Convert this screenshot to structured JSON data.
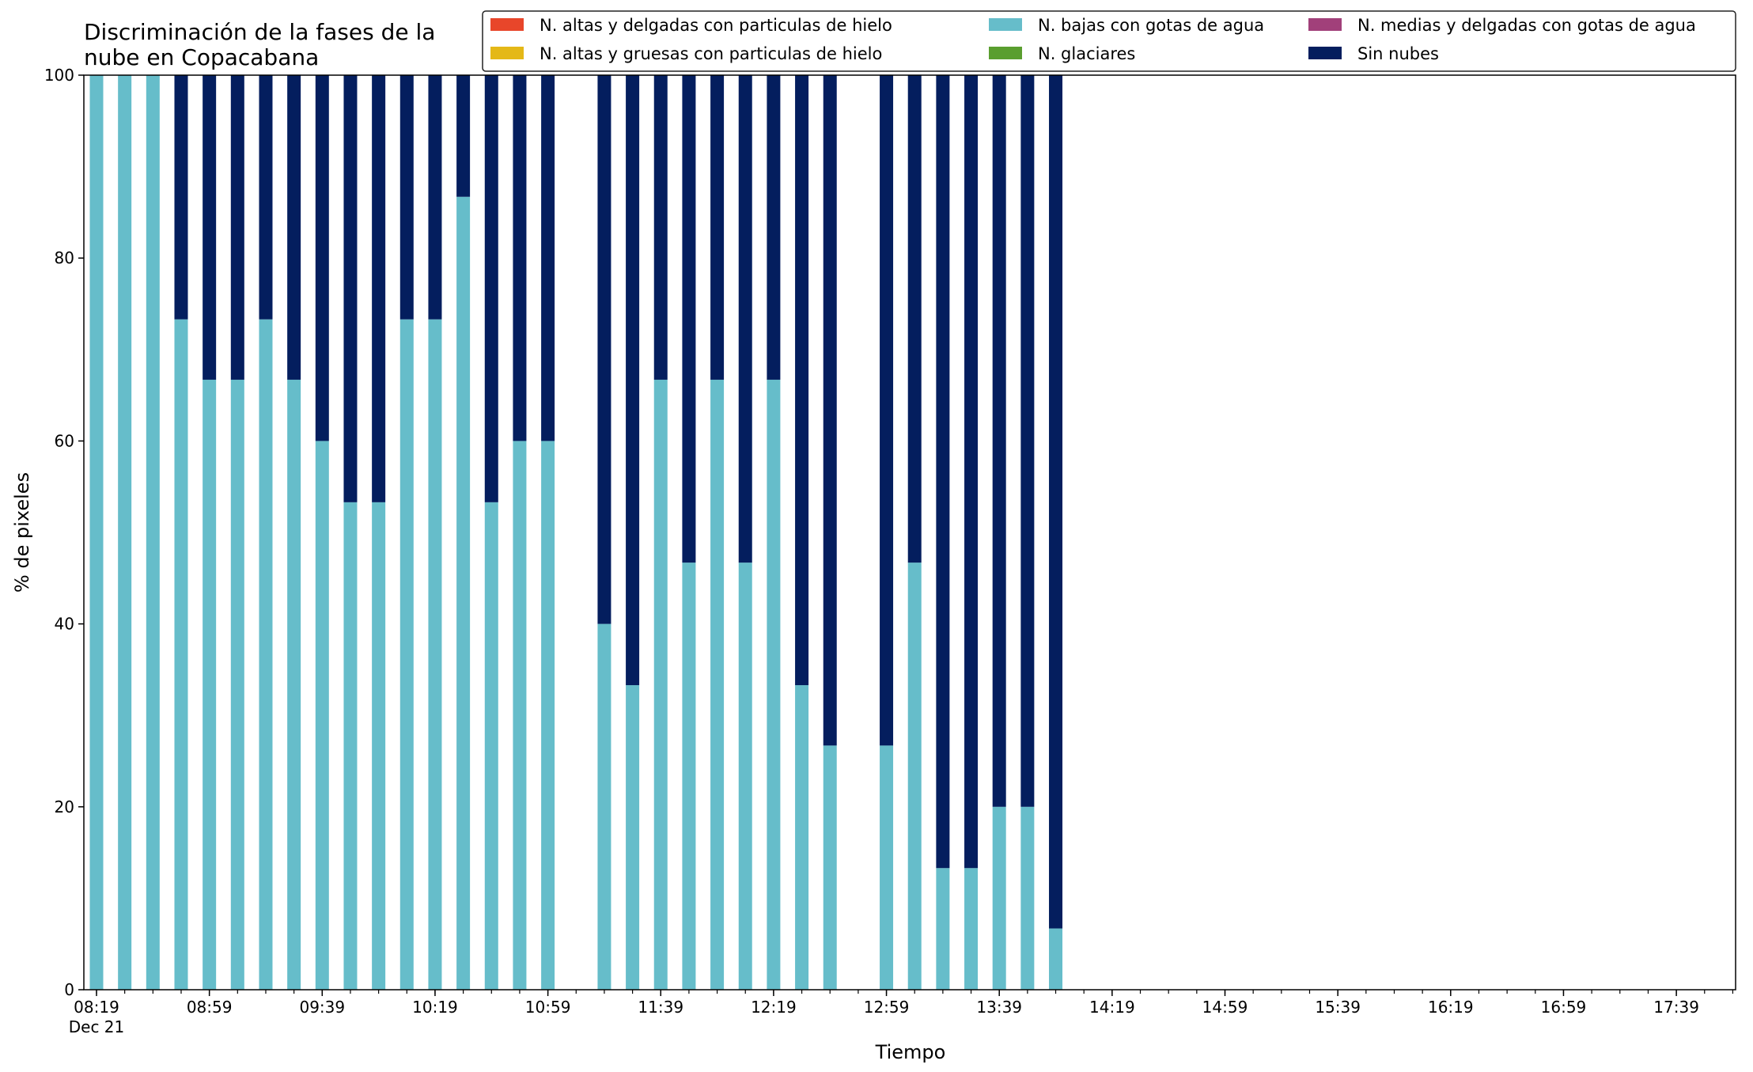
{
  "chart_data": {
    "type": "bar",
    "stacked": true,
    "title": "Discriminación de la fases de la\nnube en Copacabana",
    "xlabel": "Tiempo",
    "ylabel": "% de pixeles",
    "ylim": [
      0,
      100
    ],
    "yticks": [
      0,
      20,
      40,
      60,
      80,
      100
    ],
    "grid": false,
    "legend_position": "top-right",
    "x_start_time": "08:19",
    "x_end_time": "18:00",
    "bar_interval_minutes": 10,
    "xtick_labels": [
      "08:19",
      "08:59",
      "09:39",
      "10:19",
      "10:59",
      "11:39",
      "12:19",
      "12:59",
      "13:39",
      "14:19",
      "14:59",
      "15:39",
      "16:19",
      "16:59",
      "17:39"
    ],
    "xtick_sublabel": "Dec 21",
    "x": [
      "08:19",
      "08:29",
      "08:39",
      "08:49",
      "08:59",
      "09:09",
      "09:19",
      "09:29",
      "09:39",
      "09:49",
      "09:59",
      "10:09",
      "10:19",
      "10:29",
      "10:39",
      "10:49",
      "10:59",
      "11:09",
      "11:19",
      "11:29",
      "11:39",
      "11:49",
      "11:59",
      "12:09",
      "12:19",
      "12:29",
      "12:39",
      "12:49",
      "12:59",
      "13:09",
      "13:19",
      "13:29",
      "13:39",
      "13:49",
      "13:59"
    ],
    "series": [
      {
        "name": "N. altas y delgadas con particulas de hielo",
        "color": "#e8462a",
        "values": [
          0,
          0,
          0,
          0,
          0,
          0,
          0,
          0,
          0,
          0,
          0,
          0,
          0,
          0,
          0,
          0,
          0,
          0,
          0,
          0,
          0,
          0,
          0,
          0,
          0,
          0,
          0,
          0,
          0,
          0,
          0,
          0,
          0,
          0,
          0
        ]
      },
      {
        "name": "N. altas y gruesas con particulas de hielo",
        "color": "#e4b817",
        "values": [
          0,
          0,
          0,
          0,
          0,
          0,
          0,
          0,
          0,
          0,
          0,
          0,
          0,
          0,
          0,
          0,
          0,
          0,
          0,
          0,
          0,
          0,
          0,
          0,
          0,
          0,
          0,
          0,
          0,
          0,
          0,
          0,
          0,
          0,
          0
        ]
      },
      {
        "name": "N. bajas con gotas de agua",
        "color": "#66bdca",
        "values": [
          100,
          100,
          100,
          73.3,
          66.7,
          66.7,
          73.3,
          66.7,
          60,
          53.3,
          53.3,
          73.3,
          73.3,
          86.7,
          53.3,
          60,
          60,
          null,
          40,
          33.3,
          66.7,
          46.7,
          66.7,
          46.7,
          66.7,
          33.3,
          26.7,
          null,
          26.7,
          46.7,
          13.3,
          13.3,
          20,
          20,
          6.7
        ]
      },
      {
        "name": "N. glaciares",
        "color": "#5a9e2f",
        "values": [
          0,
          0,
          0,
          0,
          0,
          0,
          0,
          0,
          0,
          0,
          0,
          0,
          0,
          0,
          0,
          0,
          0,
          0,
          0,
          0,
          0,
          0,
          0,
          0,
          0,
          0,
          0,
          0,
          0,
          0,
          0,
          0,
          0,
          0,
          0
        ]
      },
      {
        "name": "N. medias y delgadas con gotas de agua",
        "color": "#a1407a",
        "values": [
          0,
          0,
          0,
          0,
          0,
          0,
          0,
          0,
          0,
          0,
          0,
          0,
          0,
          0,
          0,
          0,
          0,
          0,
          0,
          0,
          0,
          0,
          0,
          0,
          0,
          0,
          0,
          0,
          0,
          0,
          0,
          0,
          0,
          0,
          0
        ]
      },
      {
        "name": "Sin nubes",
        "color": "#041e5e",
        "values": [
          0,
          0,
          0,
          26.7,
          33.3,
          33.3,
          26.7,
          33.3,
          40,
          46.7,
          46.7,
          26.7,
          26.7,
          13.3,
          46.7,
          40,
          40,
          null,
          60,
          66.7,
          33.3,
          53.3,
          33.3,
          53.3,
          33.3,
          66.7,
          73.3,
          null,
          73.3,
          53.3,
          86.7,
          86.7,
          80,
          80,
          93.3
        ]
      }
    ],
    "legend_order": [
      0,
      1,
      2,
      3,
      4,
      5
    ]
  }
}
